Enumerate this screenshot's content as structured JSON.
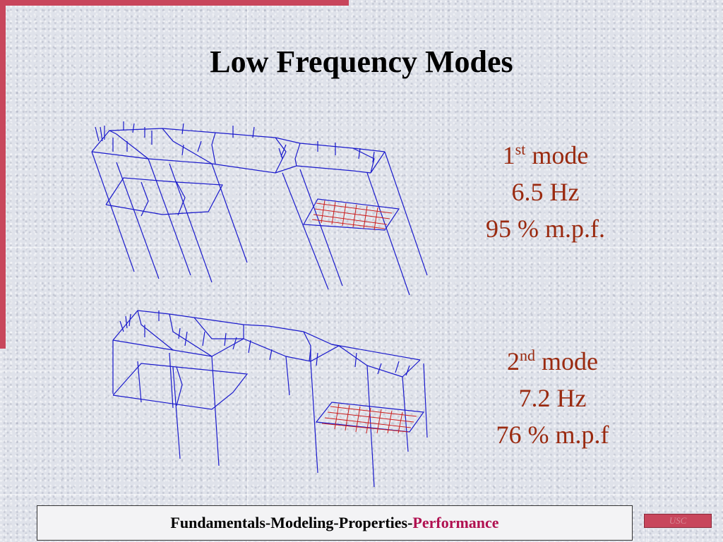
{
  "title": "Low Frequency Modes",
  "modes": [
    {
      "ordinal": "1",
      "suffix": "st",
      "word": "mode",
      "frequency": "6.5 Hz",
      "mpf": "95 % m.p.f."
    },
    {
      "ordinal": "2",
      "suffix": "nd",
      "word": "mode",
      "frequency": "7.2 Hz",
      "mpf": "76 % m.p.f"
    }
  ],
  "footer": {
    "prefix": "Fundamentals-Modeling-Properties-",
    "highlight": "Performance"
  },
  "badge": "USC",
  "colors": {
    "accent": "#c8465c",
    "mode_text": "#9a2a10",
    "wire_blue": "#1a1acc",
    "wire_red": "#cc2020",
    "footer_highlight": "#b01050"
  },
  "icons": [
    "mode-1-structure-diagram",
    "mode-2-structure-diagram"
  ]
}
